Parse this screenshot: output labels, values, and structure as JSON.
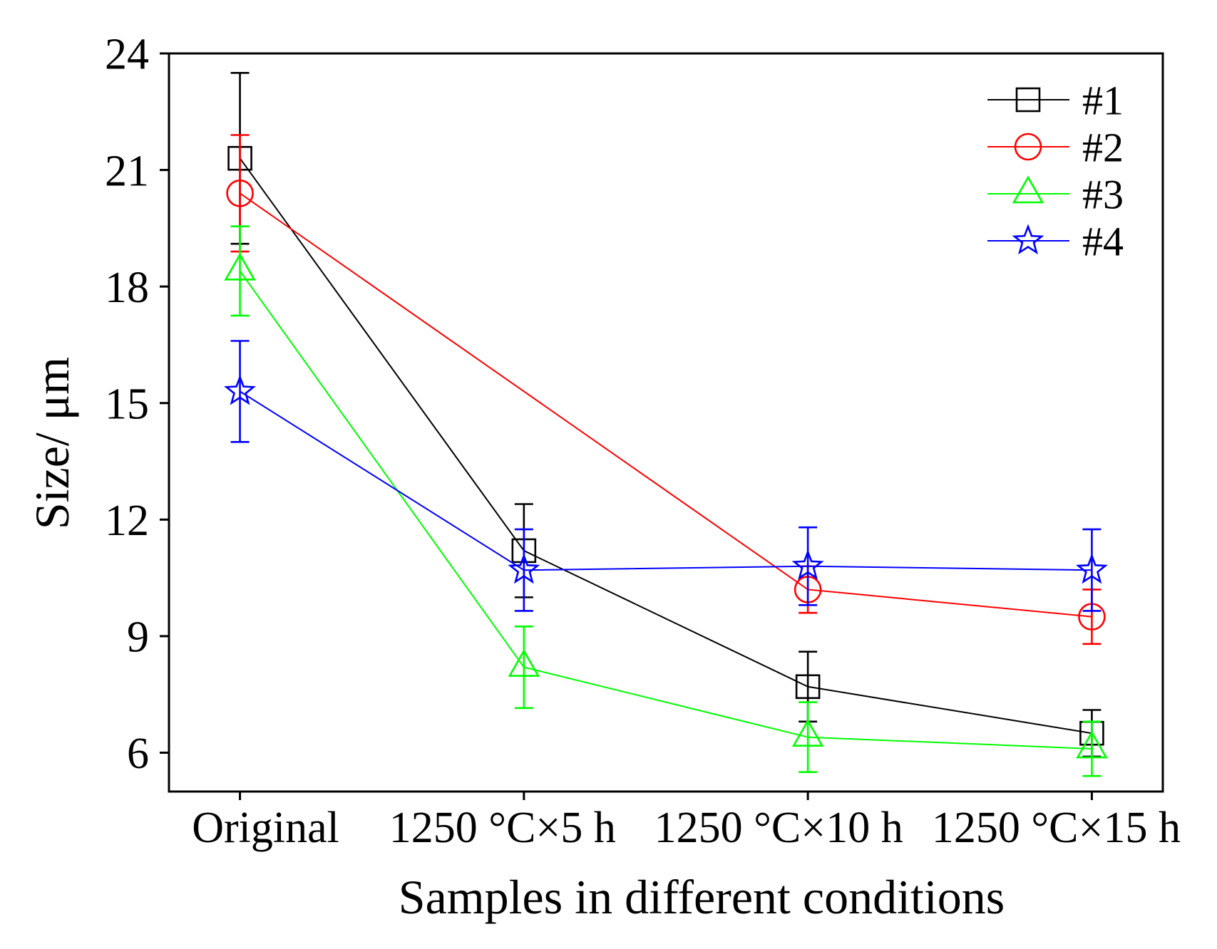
{
  "chart_data": {
    "type": "line",
    "title": "",
    "xlabel": "Samples in different conditions",
    "ylabel": "Size/ μm",
    "categories": [
      "Original",
      "1250 °C×5 h",
      "1250 °C×10 h",
      "1250 °C×15 h"
    ],
    "ylim": [
      5,
      24
    ],
    "yticks": [
      6,
      9,
      12,
      15,
      18,
      21,
      24
    ],
    "grid": false,
    "legend": "top-right",
    "series": [
      {
        "name": "#1",
        "color": "#000000",
        "marker": "square",
        "values": [
          21.3,
          11.2,
          7.7,
          6.5
        ],
        "errors": [
          2.2,
          1.2,
          0.9,
          0.6
        ]
      },
      {
        "name": "#2",
        "color": "#ff0000",
        "marker": "circle",
        "values": [
          20.4,
          null,
          10.2,
          9.5
        ],
        "errors": [
          1.5,
          null,
          0.6,
          0.7
        ]
      },
      {
        "name": "#3",
        "color": "#00ff00",
        "marker": "triangle",
        "values": [
          18.4,
          8.2,
          6.4,
          6.1
        ],
        "errors": [
          1.15,
          1.05,
          0.9,
          0.7
        ]
      },
      {
        "name": "#4",
        "color": "#0000ff",
        "marker": "star",
        "values": [
          15.3,
          10.7,
          10.8,
          10.7
        ],
        "errors": [
          1.3,
          1.05,
          1.0,
          1.05
        ]
      }
    ]
  }
}
